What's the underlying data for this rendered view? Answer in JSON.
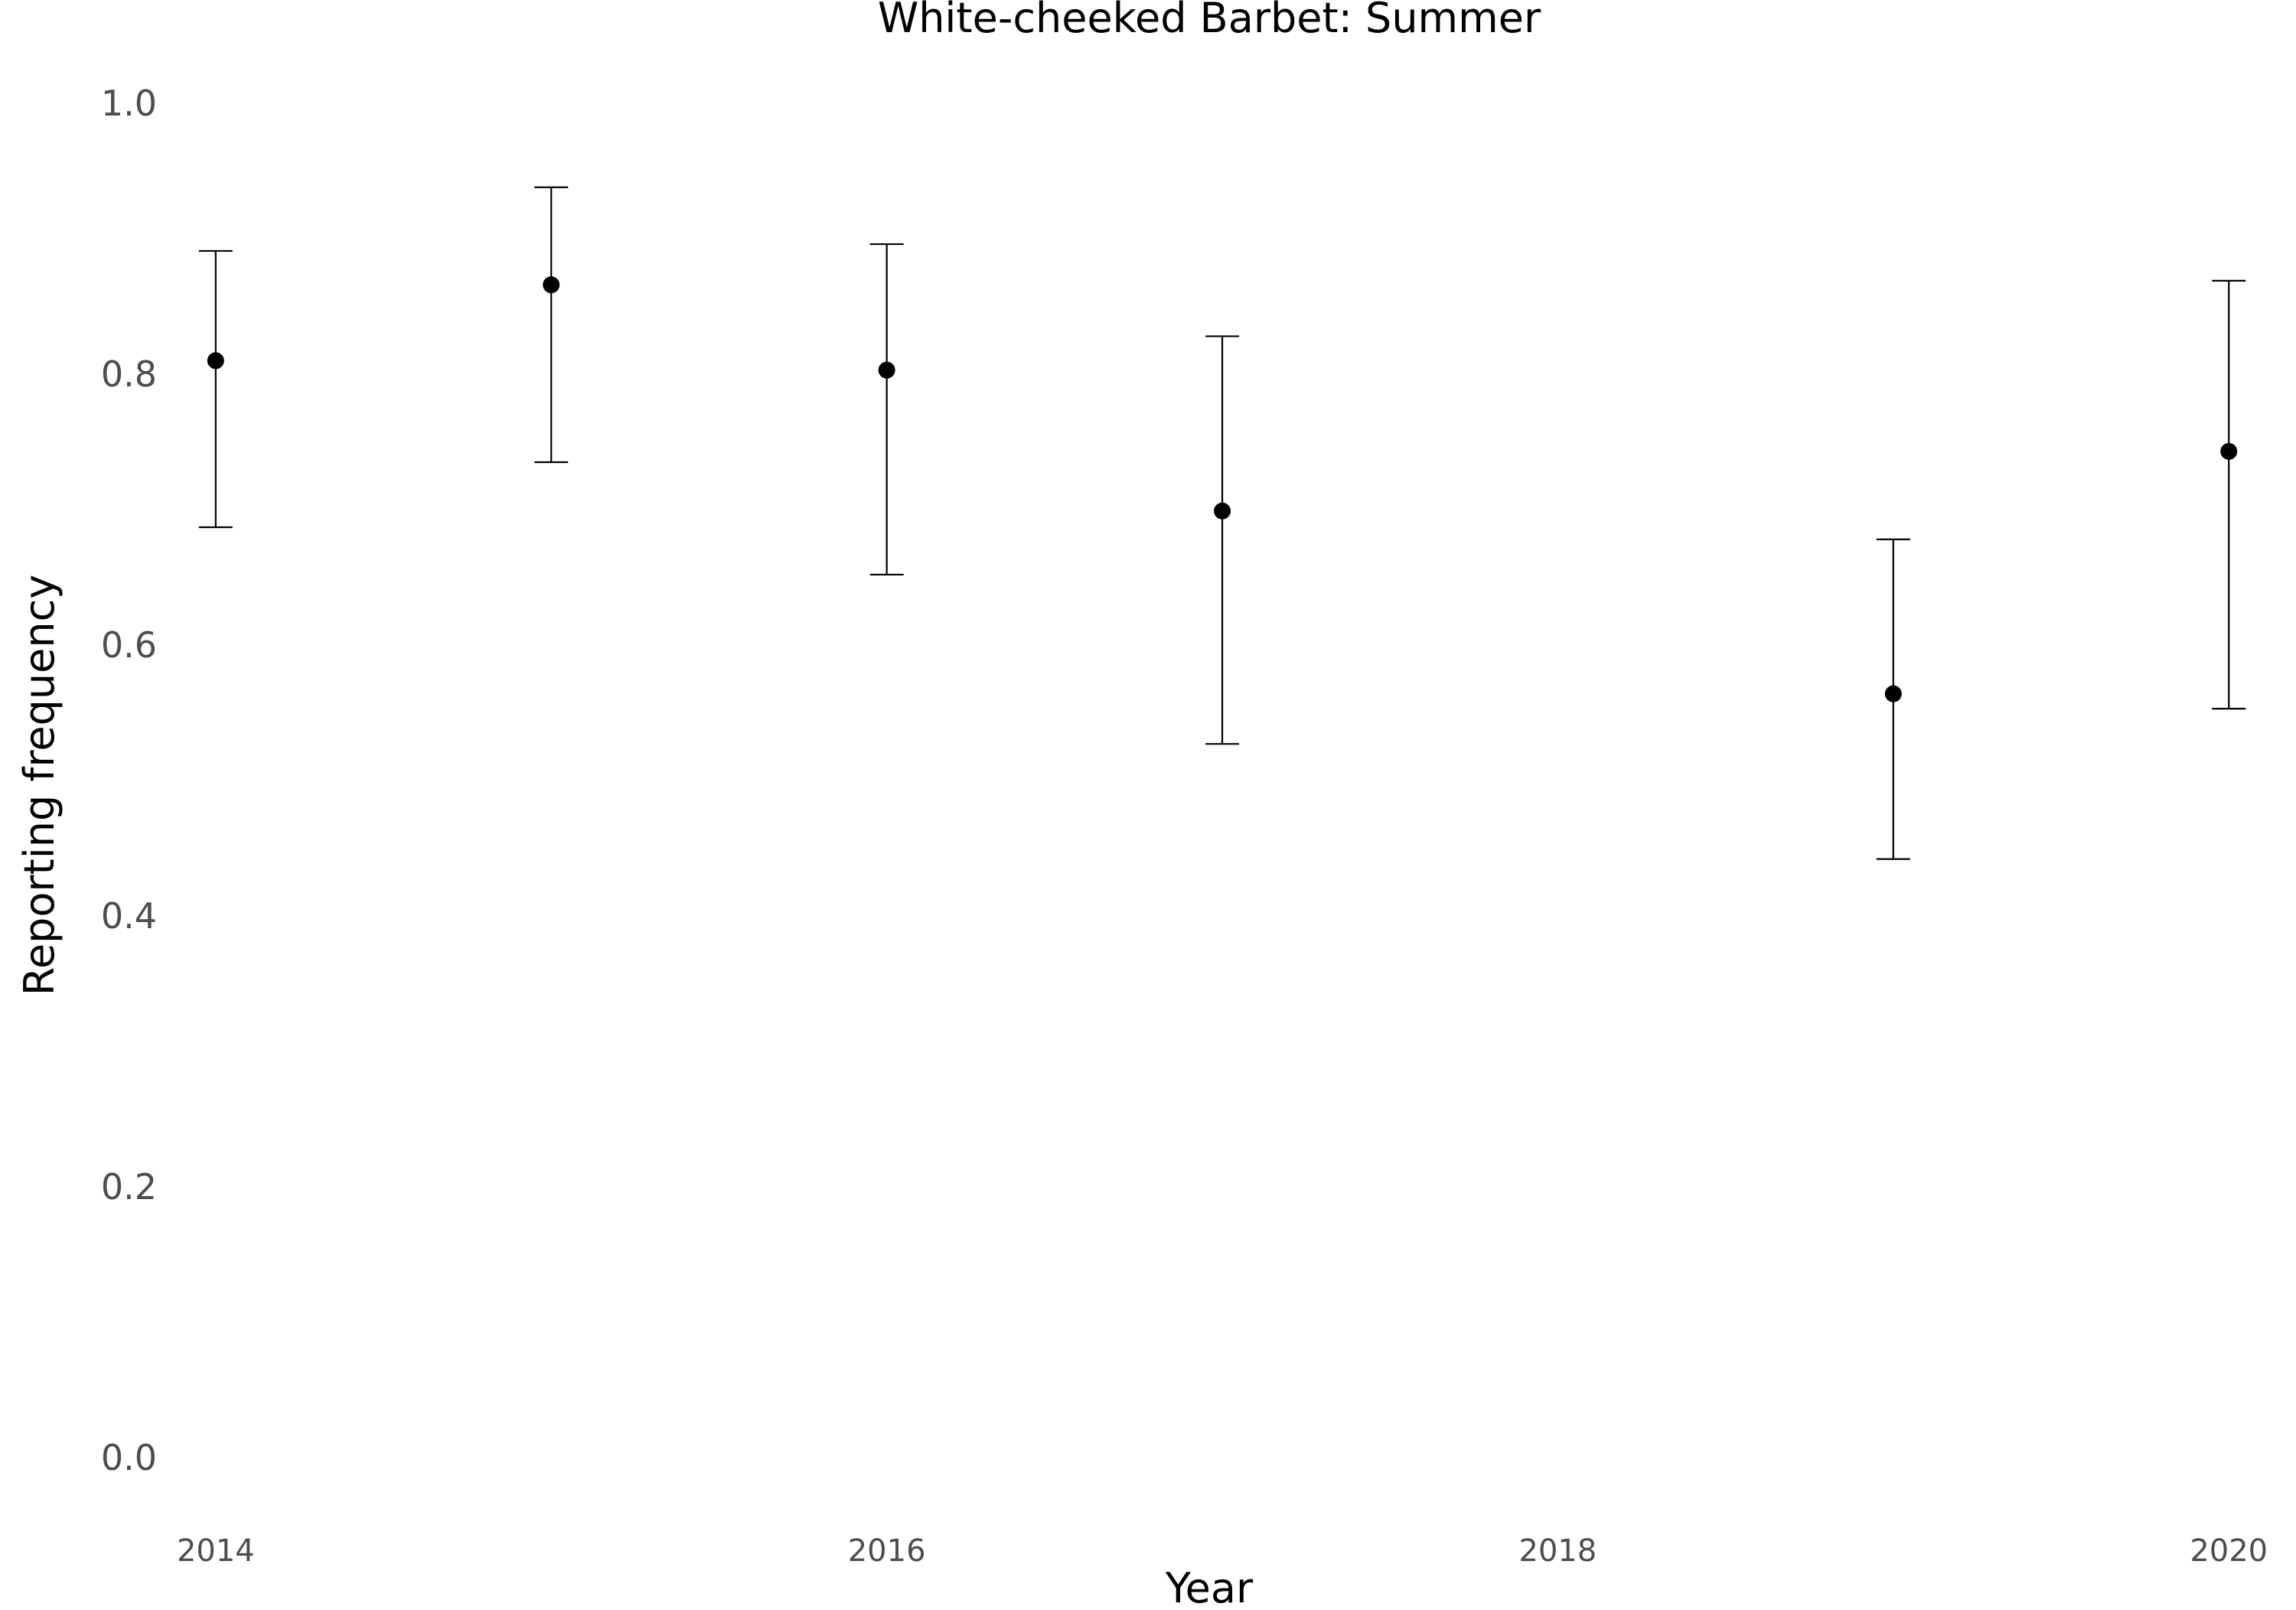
{
  "chart_data": {
    "type": "scatter",
    "title": "White-cheeked Barbet: Summer",
    "xlabel": "Year",
    "ylabel": "Reporting frequency",
    "xlim": [
      2013.9,
      2020.15
    ],
    "ylim": [
      -0.03,
      1.0
    ],
    "x_ticks": [
      2014,
      2016,
      2018,
      2020
    ],
    "y_ticks": [
      0.0,
      0.2,
      0.4,
      0.6,
      0.8,
      1.0
    ],
    "x_tick_labels": [
      "2014",
      "2016",
      "2018",
      "2020"
    ],
    "y_tick_labels": [
      "0.0",
      "0.2",
      "0.4",
      "0.6",
      "0.8",
      "1.0"
    ],
    "grid": false,
    "legend": "none",
    "series": [
      {
        "points": [
          {
            "x": 2014,
            "y": 0.81,
            "ymin": 0.687,
            "ymax": 0.891
          },
          {
            "x": 2015,
            "y": 0.866,
            "ymin": 0.735,
            "ymax": 0.938
          },
          {
            "x": 2016,
            "y": 0.803,
            "ymin": 0.652,
            "ymax": 0.896
          },
          {
            "x": 2017,
            "y": 0.699,
            "ymin": 0.527,
            "ymax": 0.828
          },
          {
            "x": 2019,
            "y": 0.564,
            "ymin": 0.442,
            "ymax": 0.678
          },
          {
            "x": 2020,
            "y": 0.743,
            "ymin": 0.553,
            "ymax": 0.869
          }
        ]
      }
    ],
    "colors": {
      "point": "#000000",
      "errorbar": "#000000",
      "tick_text": "#4d4d4d",
      "background": "#ffffff"
    }
  }
}
